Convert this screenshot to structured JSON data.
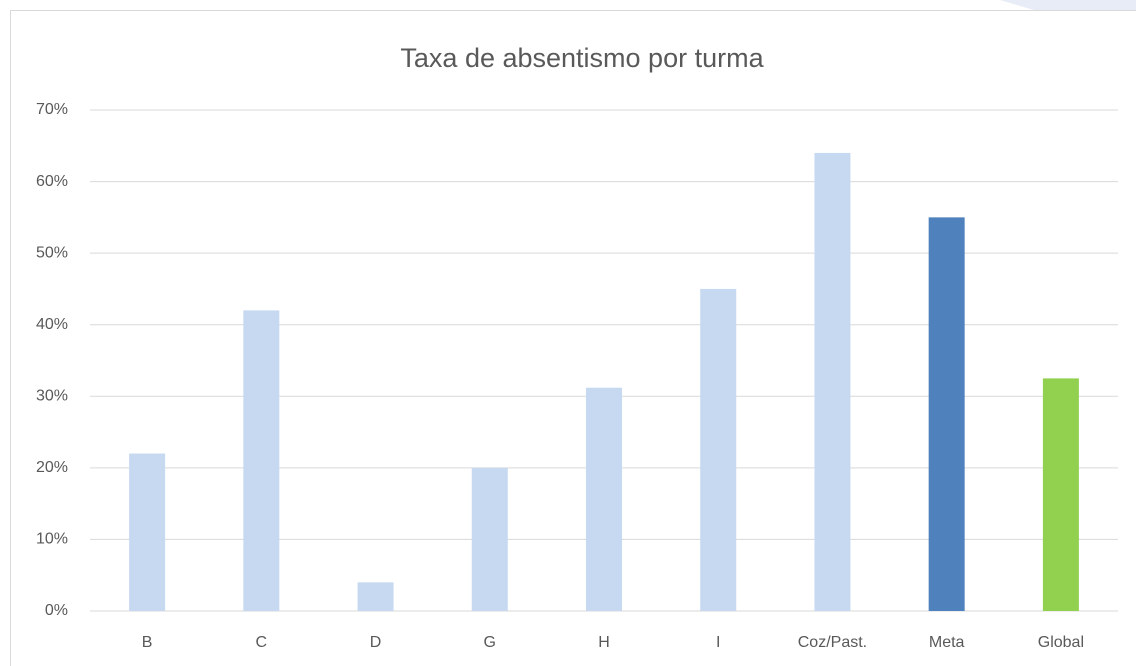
{
  "chart_data": {
    "type": "bar",
    "title": "Taxa de absentismo por turma",
    "categories": [
      "B",
      "C",
      "D",
      "G",
      "H",
      "I",
      "Coz/Past.",
      "Meta",
      "Global"
    ],
    "values": [
      22,
      42,
      4,
      20,
      31.2,
      45,
      64,
      55,
      32.5
    ],
    "colors": [
      "#c6d9f1",
      "#c6d9f1",
      "#c6d9f1",
      "#c6d9f1",
      "#c6d9f1",
      "#c6d9f1",
      "#c6d9f1",
      "#4f81bd",
      "#92d050"
    ],
    "ylim": [
      0,
      70
    ],
    "yticks": [
      {
        "value": 0,
        "label": "0%"
      },
      {
        "value": 10,
        "label": "10%"
      },
      {
        "value": 20,
        "label": "20%"
      },
      {
        "value": 30,
        "label": "30%"
      },
      {
        "value": 40,
        "label": "40%"
      },
      {
        "value": 50,
        "label": "50%"
      },
      {
        "value": 60,
        "label": "60%"
      },
      {
        "value": 70,
        "label": "70%"
      }
    ],
    "grid": true
  }
}
